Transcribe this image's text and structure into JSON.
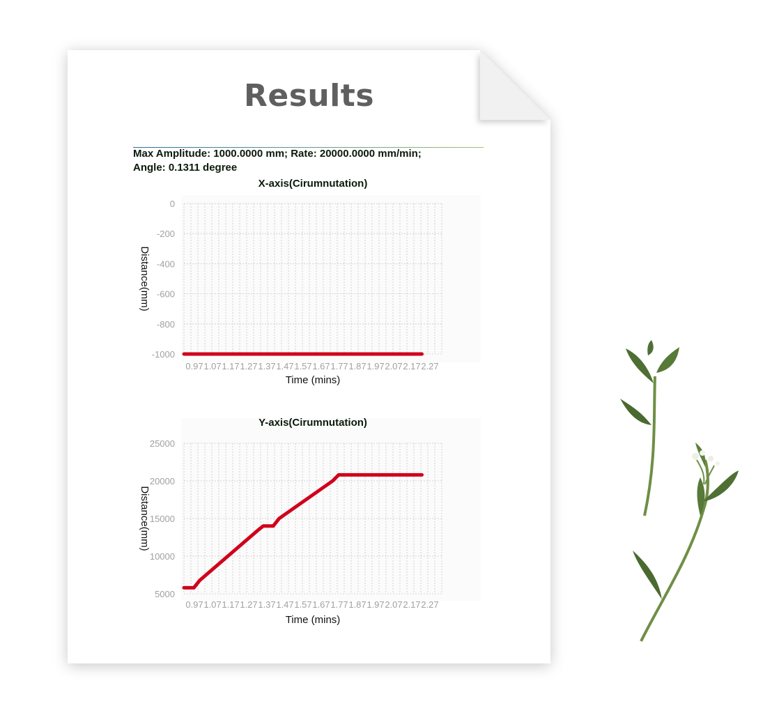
{
  "document": {
    "title": "Results",
    "info_line1": "Max Amplitude: 1000.0000 mm; Rate: 20000.0000 mm/min;",
    "info_line2": "Angle: 0.1311 degree"
  },
  "colors": {
    "series": "#d0021b",
    "grid": "#c8c8c8",
    "tick_label": "#a0a0a0",
    "title_text": "#5f5f5f"
  },
  "chart_data": [
    {
      "type": "line",
      "title": "X-axis(Cirumnutation)",
      "xlabel": "Time (mins)",
      "ylabel": "Distance(mm)",
      "ylim": [
        -1000,
        0
      ],
      "y_ticks": [
        0,
        -200,
        -400,
        -600,
        -800,
        -1000
      ],
      "x_tick_labels": [
        "0.97",
        "1.07",
        "1.17",
        "1.27",
        "1.37",
        "1.47",
        "1.57",
        "1.67",
        "1.77",
        "1.87",
        "1.97",
        "2.07",
        "2.17",
        "2.27"
      ],
      "xlim": [
        0.97,
        2.27
      ],
      "grid": true,
      "series": [
        {
          "x": [
            0.97,
            2.17
          ],
          "y": [
            -1000,
            -1000
          ]
        }
      ]
    },
    {
      "type": "line",
      "title": "Y-axis(Cirumnutation)",
      "xlabel": "Time (mins)",
      "ylabel": "Distance(mm)",
      "ylim": [
        5000,
        25000
      ],
      "y_ticks": [
        25000,
        20000,
        15000,
        10000,
        5000
      ],
      "x_tick_labels": [
        "0.97",
        "1.07",
        "1.17",
        "1.27",
        "1.37",
        "1.47",
        "1.57",
        "1.67",
        "1.77",
        "1.87",
        "1.97",
        "2.07",
        "2.17",
        "2.27"
      ],
      "xlim": [
        0.97,
        2.27
      ],
      "grid": true,
      "series": [
        {
          "x": [
            0.97,
            1.02,
            1.05,
            1.35,
            1.37,
            1.42,
            1.45,
            1.72,
            1.75,
            1.8,
            2.17
          ],
          "y": [
            5800,
            5800,
            6800,
            13600,
            14000,
            14000,
            15000,
            20000,
            20800,
            20800,
            20800
          ]
        }
      ]
    }
  ]
}
